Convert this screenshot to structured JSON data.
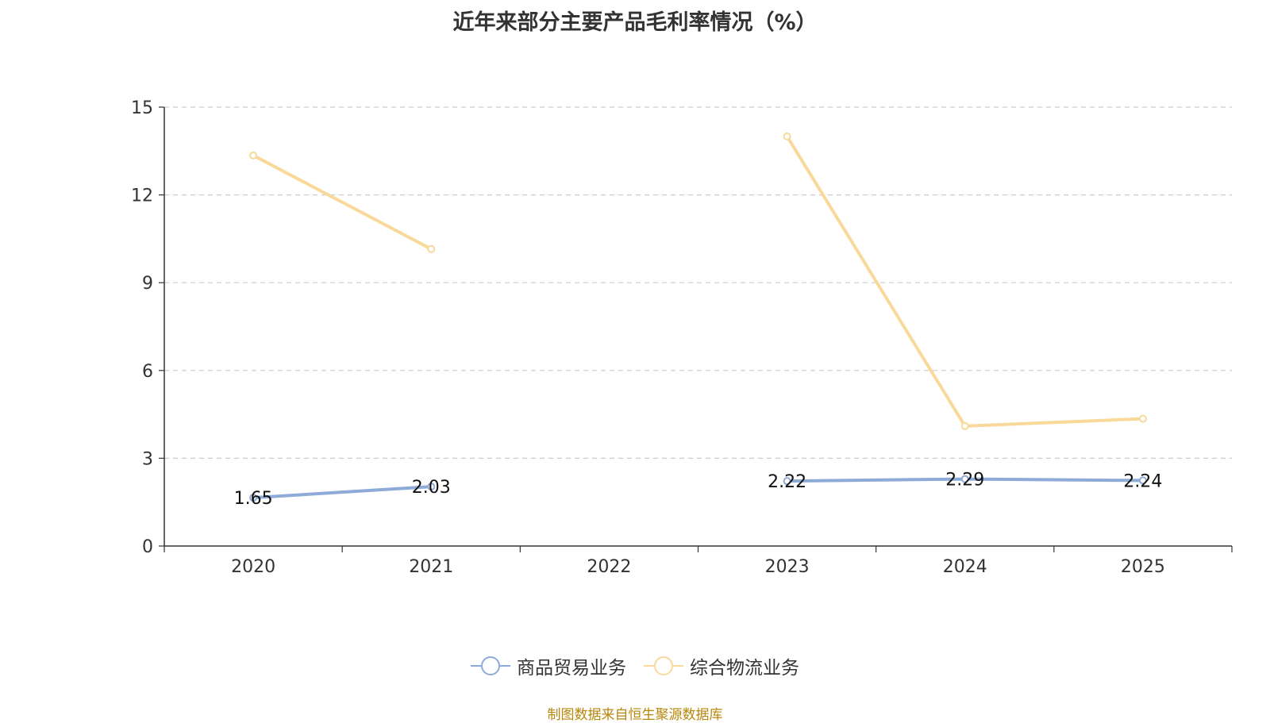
{
  "chart_data": {
    "type": "line",
    "title": "近年来部分主要产品毛利率情况（%）",
    "categories": [
      "2020",
      "2021",
      "2022",
      "2023",
      "2024",
      "2025"
    ],
    "yticks": [
      "0",
      "3",
      "6",
      "9",
      "12",
      "15"
    ],
    "ylim": [
      0,
      15
    ],
    "grid": true,
    "legend_position": "bottom",
    "series": [
      {
        "name": "商品贸易业务",
        "color": "#8eaad6",
        "values": [
          1.65,
          2.03,
          null,
          2.22,
          2.29,
          2.24
        ],
        "labels": [
          "1.65",
          "2.03",
          "",
          "2.22",
          "2.29",
          "2.24"
        ]
      },
      {
        "name": "综合物流业务",
        "color": "#f9d99a",
        "values": [
          13.35,
          10.15,
          null,
          14.0,
          4.1,
          4.35
        ],
        "labels": []
      }
    ]
  },
  "source_text": "制图数据来自恒生聚源数据库"
}
